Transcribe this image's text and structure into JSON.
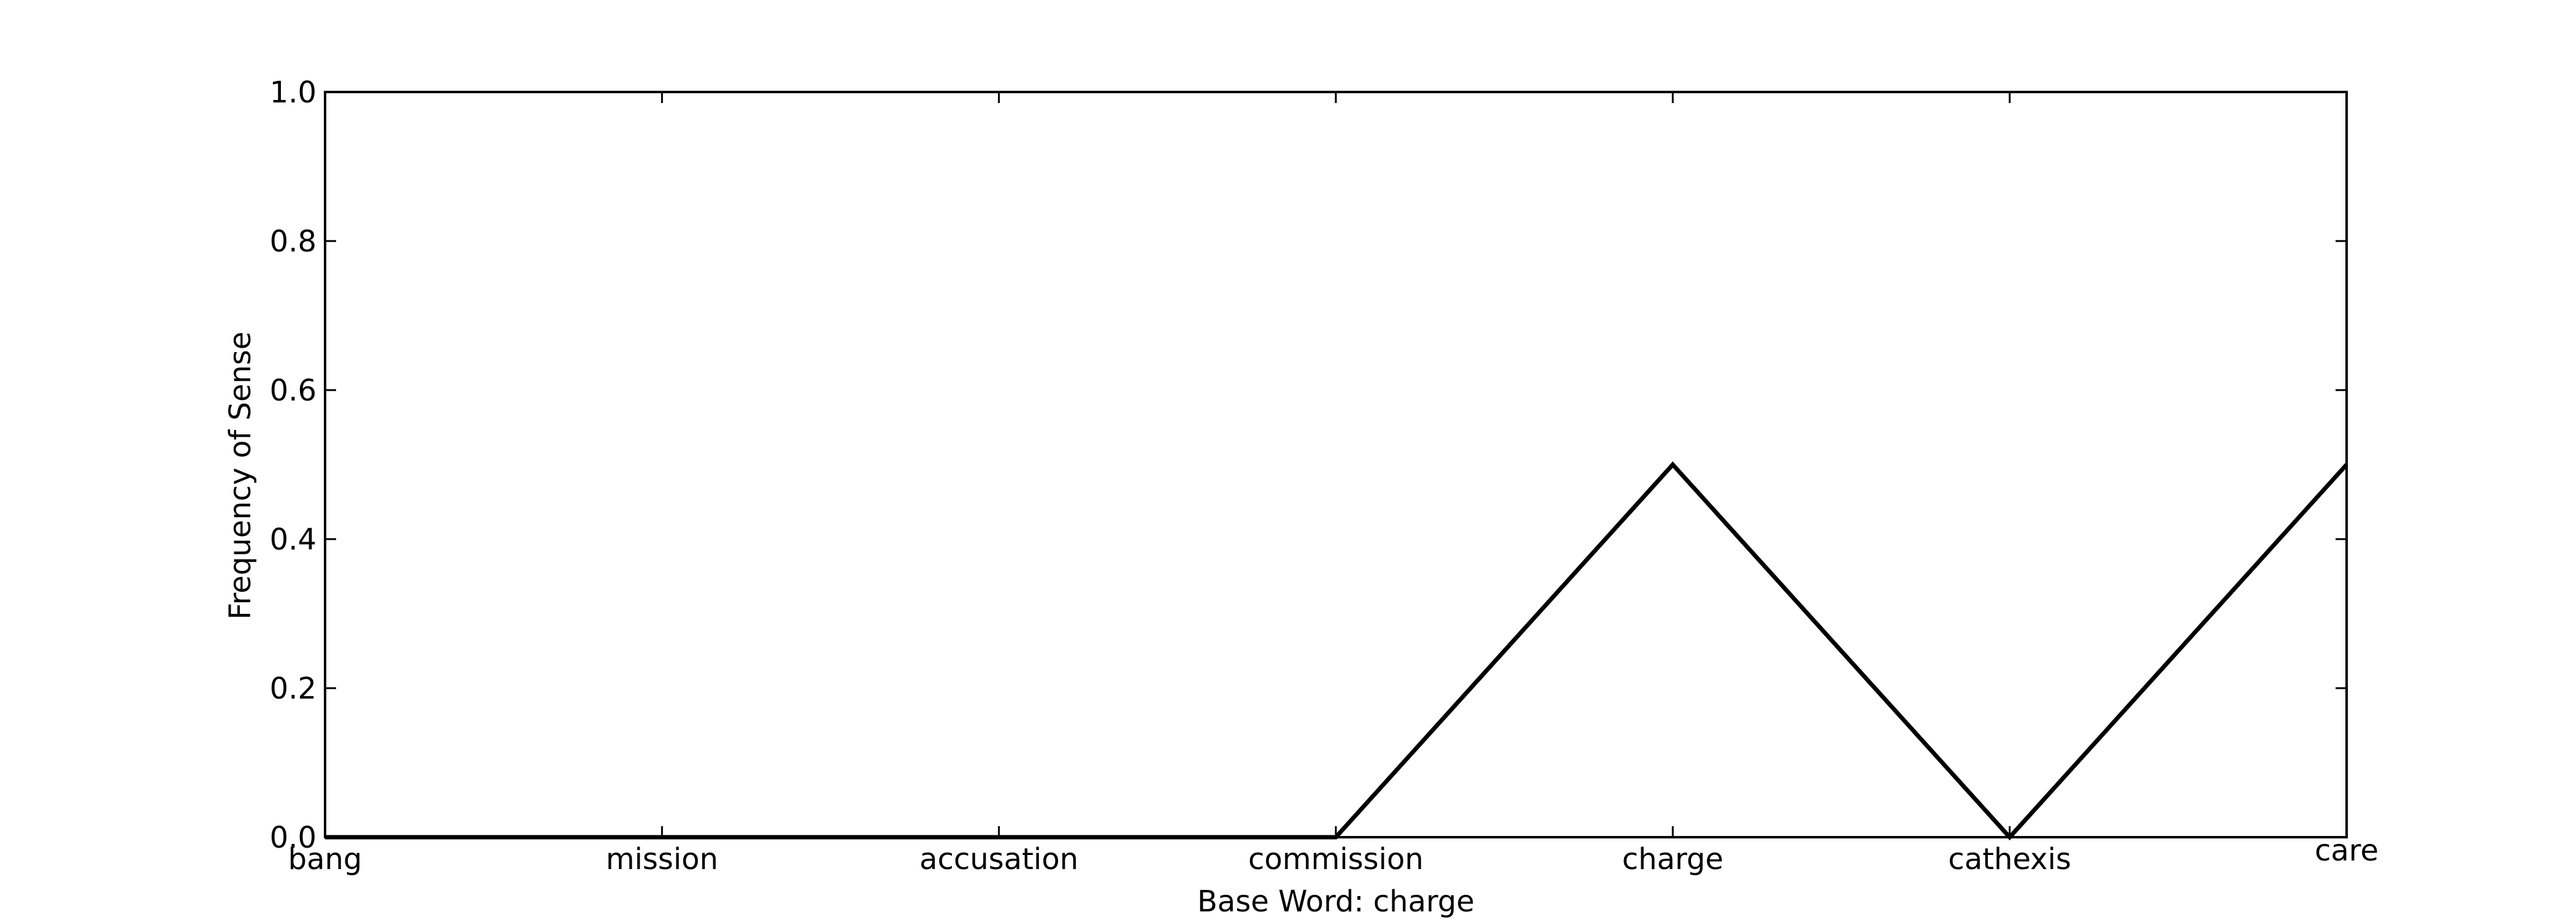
{
  "chart_data": {
    "type": "line",
    "title": "",
    "xlabel": "Base Word: charge",
    "ylabel": "Frequency of Sense",
    "categories": [
      "bang",
      "mission",
      "accusation",
      "commission",
      "charge",
      "cathexis",
      "care"
    ],
    "series": [
      {
        "values": [
          0.0,
          0.0,
          0.0,
          0.0,
          0.5,
          0.0,
          0.5
        ]
      }
    ],
    "ylim": [
      0,
      1.0
    ],
    "yticks": [
      "0.0",
      "0.2",
      "0.4",
      "0.6",
      "0.8",
      "1.0"
    ],
    "grid": false,
    "legend": "none",
    "colors": {
      "line": "#000000",
      "axes": "#000000",
      "background": "#ffffff"
    }
  }
}
